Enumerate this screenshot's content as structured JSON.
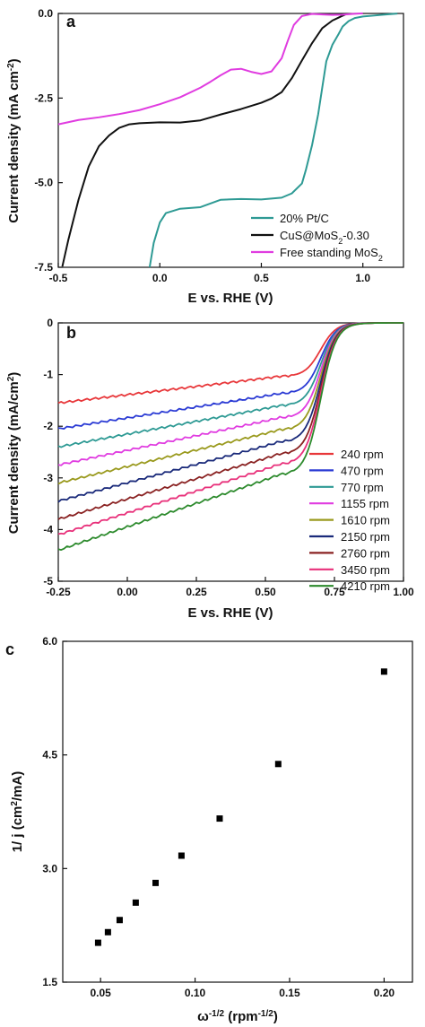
{
  "chart_data": [
    {
      "type": "line",
      "panel": "a",
      "xlabel": "E vs. RHE (V)",
      "ylabel_main": "Current density (mA cm",
      "ylabel_sup": "-2",
      "ylabel_end": ")",
      "xlim": [
        -0.5,
        1.2
      ],
      "ylim": [
        -7.5,
        0.0
      ],
      "xticks": [
        "-0.5",
        "0.0",
        "0.5",
        "1.0"
      ],
      "xtick_values": [
        -0.5,
        0.0,
        0.5,
        1.0
      ],
      "yticks": [
        "0.0",
        "-2.5",
        "-5.0",
        "-7.5"
      ],
      "ytick_values": [
        0.0,
        -2.5,
        -5.0,
        -7.5
      ],
      "legend_placement": "bottom-right",
      "series": [
        {
          "name": "20% Pt/C",
          "name_parts": [
            "20% Pt/C",
            "",
            ""
          ],
          "color": "#2e9a94",
          "x": [
            -0.05,
            -0.03,
            0.0,
            0.03,
            0.1,
            0.2,
            0.3,
            0.4,
            0.5,
            0.6,
            0.65,
            0.7,
            0.72,
            0.75,
            0.78,
            0.8,
            0.82,
            0.85,
            0.88,
            0.9,
            0.93,
            0.96,
            1.0,
            1.05,
            1.1,
            1.17
          ],
          "y": [
            -7.5,
            -6.8,
            -6.2,
            -5.9,
            -5.75,
            -5.7,
            -5.5,
            -5.5,
            -5.52,
            -5.45,
            -5.3,
            -5.0,
            -4.6,
            -3.9,
            -3.0,
            -2.2,
            -1.4,
            -0.9,
            -0.6,
            -0.4,
            -0.25,
            -0.15,
            -0.08,
            -0.04,
            -0.02,
            -0.01
          ]
        },
        {
          "name": "CuS@MoS2-0.30",
          "name_parts": [
            "CuS@MoS",
            "2",
            "-0.30"
          ],
          "color": "#111111",
          "x": [
            -0.48,
            -0.45,
            -0.4,
            -0.35,
            -0.3,
            -0.25,
            -0.2,
            -0.15,
            -0.1,
            0.0,
            0.1,
            0.2,
            0.3,
            0.4,
            0.5,
            0.55,
            0.6,
            0.65,
            0.7,
            0.75,
            0.8,
            0.85,
            0.88,
            0.9,
            0.92
          ],
          "y": [
            -7.5,
            -6.7,
            -5.5,
            -4.5,
            -3.9,
            -3.6,
            -3.4,
            -3.3,
            -3.25,
            -3.2,
            -3.2,
            -3.15,
            -3.0,
            -2.85,
            -2.65,
            -2.5,
            -2.3,
            -1.9,
            -1.4,
            -0.9,
            -0.45,
            -0.2,
            -0.1,
            -0.05,
            -0.02
          ]
        },
        {
          "name": "Free standing MoS2",
          "name_parts": [
            "Free standing MoS",
            "2",
            ""
          ],
          "color": "#e03ce0",
          "x": [
            -0.5,
            -0.4,
            -0.3,
            -0.2,
            -0.1,
            0.0,
            0.1,
            0.2,
            0.25,
            0.3,
            0.35,
            0.4,
            0.45,
            0.5,
            0.55,
            0.6,
            0.63,
            0.66,
            0.7,
            0.75,
            0.8,
            0.85,
            0.9,
            0.95,
            1.0
          ],
          "y": [
            -3.3,
            -3.15,
            -3.05,
            -2.95,
            -2.85,
            -2.7,
            -2.5,
            -2.2,
            -2.0,
            -1.8,
            -1.65,
            -1.65,
            -1.75,
            -1.8,
            -1.7,
            -1.3,
            -0.8,
            -0.35,
            -0.1,
            -0.03,
            -0.02,
            -0.02,
            -0.02,
            -0.02,
            -0.02
          ]
        }
      ]
    },
    {
      "type": "line",
      "panel": "b",
      "xlabel": "E vs. RHE (V)",
      "ylabel": "Current density (mA/cm",
      "ylabel_sup": "2",
      "ylabel_end": ")",
      "xlim": [
        -0.25,
        1.0
      ],
      "ylim": [
        -5,
        0
      ],
      "xticks": [
        "-0.25",
        "0.00",
        "0.25",
        "0.50",
        "0.75",
        "1.00"
      ],
      "xtick_values": [
        -0.25,
        0.0,
        0.25,
        0.5,
        0.75,
        1.0
      ],
      "yticks": [
        "0",
        "-1",
        "-2",
        "-3",
        "-4",
        "-5"
      ],
      "ytick_values": [
        0,
        -1,
        -2,
        -3,
        -4,
        -5
      ],
      "legend_placement": "right",
      "limiting_currents": [
        -1.55,
        -2.05,
        -2.4,
        -2.75,
        -3.1,
        -3.45,
        -3.8,
        -4.1,
        -4.4
      ],
      "series": [
        {
          "name": "240 rpm",
          "color": "#e8373a"
        },
        {
          "name": "470 rpm",
          "color": "#2a3ad4"
        },
        {
          "name": "770 rpm",
          "color": "#2e9a94"
        },
        {
          "name": "1155 rpm",
          "color": "#e03ce0"
        },
        {
          "name": "1610 rpm",
          "color": "#9a9a1e"
        },
        {
          "name": "2150 rpm",
          "color": "#1a2a7a"
        },
        {
          "name": "2760 rpm",
          "color": "#8a2222"
        },
        {
          "name": "3450 rpm",
          "color": "#e8307a"
        },
        {
          "name": "4210 rpm",
          "color": "#2c8a2c"
        }
      ]
    },
    {
      "type": "scatter",
      "panel": "c",
      "xlabel_main": "ω",
      "xlabel_sup1": "-1/2",
      "xlabel_mid": " (rpm",
      "xlabel_sup2": "-1/2",
      "xlabel_end": ")",
      "ylabel_main": "1/ j (cm",
      "ylabel_sup": "2",
      "ylabel_end": "/mA)",
      "xlim": [
        0.03,
        0.215
      ],
      "ylim": [
        1.5,
        6.0
      ],
      "xticks": [
        "0.05",
        "0.10",
        "0.15",
        "0.20"
      ],
      "xtick_values": [
        0.05,
        0.1,
        0.15,
        0.2
      ],
      "yticks": [
        "6.0",
        "4.5",
        "3.0",
        "1.5"
      ],
      "ytick_values": [
        6.0,
        4.5,
        3.0,
        1.5
      ],
      "marker_color": "#000000",
      "x": [
        0.0487,
        0.0539,
        0.0601,
        0.0686,
        0.0791,
        0.0928,
        0.113,
        0.144,
        0.2
      ],
      "y": [
        2.02,
        2.16,
        2.32,
        2.55,
        2.81,
        3.17,
        3.66,
        4.38,
        5.6
      ]
    }
  ]
}
